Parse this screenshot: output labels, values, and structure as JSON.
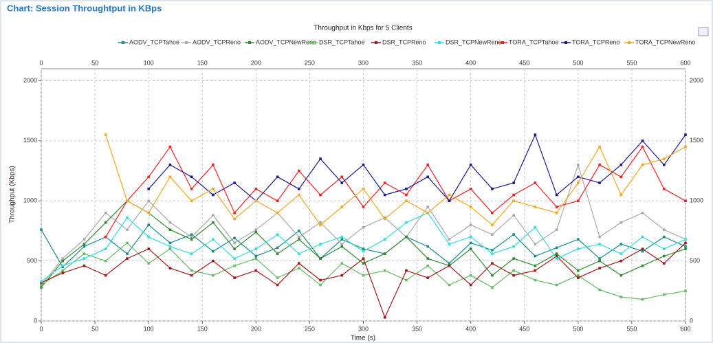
{
  "page_title": "Chart: Session Throughtput in KBps",
  "chart_data": {
    "type": "line",
    "title": "Throughput in Kbps for 5 Clients",
    "x_label": "Time (s)",
    "y_label": "Throughput (Kbps)",
    "xlim": [
      0,
      600
    ],
    "ylim": [
      0,
      2100
    ],
    "xticks": [
      0,
      50,
      100,
      150,
      200,
      250,
      300,
      350,
      400,
      450,
      500,
      550,
      600
    ],
    "yticks": [
      0,
      500,
      1000,
      1500,
      2000
    ],
    "grid": true,
    "x": [
      0,
      20,
      40,
      60,
      80,
      100,
      120,
      140,
      160,
      180,
      200,
      220,
      240,
      260,
      280,
      300,
      320,
      340,
      360,
      380,
      400,
      420,
      440,
      460,
      480,
      500,
      520,
      540,
      560,
      580,
      600
    ],
    "series": [
      {
        "name": "AODV_TCPTahoe",
        "color": "#1a8c8c",
        "values": [
          760,
          450,
          620,
          700,
          560,
          800,
          650,
          720,
          580,
          690,
          540,
          610,
          750,
          520,
          680,
          600,
          560,
          700,
          620,
          480,
          650,
          590,
          720,
          540,
          610,
          680,
          520,
          640,
          580,
          700,
          620
        ]
      },
      {
        "name": "AODV_TCPReno",
        "color": "#aaaaaa",
        "values": [
          300,
          520,
          680,
          900,
          760,
          1000,
          820,
          700,
          880,
          650,
          760,
          900,
          700,
          820,
          640,
          780,
          860,
          700,
          950,
          680,
          800,
          720,
          880,
          640,
          760,
          1300,
          700,
          820,
          900,
          760,
          680
        ]
      },
      {
        "name": "AODV_TCPNewReno",
        "color": "#2e8b2e",
        "values": [
          280,
          500,
          640,
          820,
          1000,
          900,
          760,
          680,
          820,
          600,
          740,
          560,
          680,
          520,
          620,
          480,
          560,
          700,
          520,
          460,
          600,
          380,
          520,
          460,
          560,
          420,
          500,
          380,
          460,
          540,
          600
        ]
      },
      {
        "name": "DSR_TCPTahoe",
        "color": "#66bb66",
        "values": [
          300,
          420,
          560,
          500,
          650,
          480,
          600,
          420,
          380,
          460,
          520,
          360,
          440,
          300,
          480,
          380,
          420,
          340,
          460,
          300,
          380,
          280,
          420,
          340,
          300,
          380,
          260,
          200,
          180,
          220,
          250
        ]
      },
      {
        "name": "DSR_TCPReno",
        "color": "#a01818",
        "values": [
          320,
          400,
          460,
          380,
          520,
          600,
          440,
          380,
          500,
          360,
          420,
          300,
          480,
          340,
          380,
          520,
          30,
          420,
          360,
          460,
          300,
          480,
          380,
          420,
          540,
          360,
          440,
          500,
          600,
          480,
          650
        ]
      },
      {
        "name": "DSR_TCPNewReno",
        "color": "#33dddd",
        "values": [
          330,
          460,
          520,
          600,
          860,
          700,
          620,
          560,
          680,
          520,
          600,
          720,
          560,
          640,
          700,
          580,
          680,
          820,
          900,
          640,
          700,
          560,
          620,
          780,
          520,
          600,
          640,
          560,
          700,
          600,
          680
        ]
      },
      {
        "name": "TORA_TCPTahoe",
        "color": "#ee2222",
        "values": [
          null,
          null,
          null,
          700,
          1000,
          1200,
          1450,
          1100,
          1300,
          900,
          1100,
          1000,
          1250,
          1050,
          1200,
          950,
          1150,
          1050,
          1300,
          1000,
          1100,
          900,
          1050,
          1150,
          950,
          1000,
          1300,
          1200,
          1450,
          1100,
          1000
        ]
      },
      {
        "name": "TORA_TCPReno",
        "color": "#1a1a8c",
        "values": [
          null,
          null,
          null,
          null,
          null,
          1100,
          1300,
          1200,
          1050,
          1150,
          1000,
          1200,
          1100,
          1350,
          1150,
          1300,
          1050,
          1100,
          1200,
          1000,
          1300,
          1100,
          1150,
          1550,
          1050,
          1200,
          1150,
          1300,
          1500,
          1300,
          1550
        ]
      },
      {
        "name": "TORA_TCPNewReno",
        "color": "#f5a623",
        "values": [
          null,
          null,
          null,
          1550,
          1000,
          900,
          1200,
          1000,
          1100,
          850,
          1000,
          900,
          1050,
          800,
          950,
          1100,
          850,
          1000,
          900,
          1050,
          950,
          800,
          1000,
          950,
          900,
          1150,
          1450,
          1050,
          1300,
          1350,
          1450
        ]
      }
    ]
  }
}
